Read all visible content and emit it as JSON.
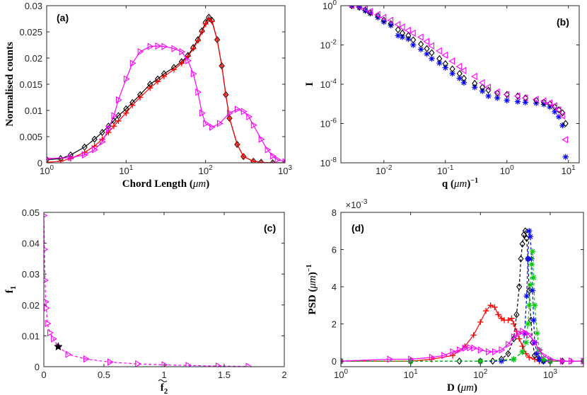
{
  "chart_data": [
    {
      "id": "a",
      "panel_label": "(a)",
      "type": "line",
      "xscale": "log",
      "xlim": [
        1,
        1000
      ],
      "ylim": [
        0,
        0.03
      ],
      "xticks": [
        1,
        10,
        100,
        1000
      ],
      "xtick_labels": [
        [
          "10",
          "0"
        ],
        [
          "10",
          "1"
        ],
        [
          "10",
          "2"
        ],
        [
          "10",
          "3"
        ]
      ],
      "yticks": [
        0,
        0.005,
        0.01,
        0.015,
        0.02,
        0.025,
        0.03
      ],
      "ytick_labels": [
        "0",
        "0.005",
        "0.01",
        "0.015",
        "0.02",
        "0.025",
        "0.03"
      ],
      "xlabel_parts": [
        "Chord Length (",
        "μm",
        ")"
      ],
      "ylabel": "Normalised counts",
      "series": [
        {
          "name": "black-diamond",
          "color": "#000000",
          "marker": "diamond",
          "x": [
            1,
            1.5,
            2,
            3,
            4,
            5,
            6,
            7,
            8,
            10,
            12,
            15,
            20,
            25,
            30,
            40,
            50,
            60,
            70,
            80,
            90,
            100,
            110,
            120,
            140,
            160,
            180,
            200,
            250,
            300,
            400,
            500,
            700,
            1000
          ],
          "y": [
            0.0006,
            0.0008,
            0.0015,
            0.003,
            0.0045,
            0.0058,
            0.007,
            0.008,
            0.009,
            0.0103,
            0.0115,
            0.013,
            0.015,
            0.016,
            0.017,
            0.0182,
            0.0193,
            0.0205,
            0.022,
            0.0235,
            0.0252,
            0.0268,
            0.0278,
            0.0272,
            0.0235,
            0.0185,
            0.013,
            0.0085,
            0.0035,
            0.0012,
            0.0003,
            0.0001,
            0,
            0
          ]
        },
        {
          "name": "red-plus",
          "color": "#ff0000",
          "marker": "plus",
          "x": [
            1,
            1.5,
            2,
            3,
            4,
            5,
            6,
            7,
            8,
            10,
            12,
            15,
            20,
            25,
            30,
            40,
            50,
            60,
            70,
            80,
            90,
            100,
            110,
            120,
            140,
            160,
            180,
            200,
            250,
            300,
            400,
            500,
            700,
            1000
          ],
          "y": [
            0.0001,
            0.0003,
            0.0008,
            0.002,
            0.0032,
            0.0045,
            0.0058,
            0.007,
            0.008,
            0.0095,
            0.011,
            0.0125,
            0.0143,
            0.0155,
            0.0165,
            0.0178,
            0.019,
            0.0203,
            0.0218,
            0.0233,
            0.025,
            0.0265,
            0.0275,
            0.027,
            0.0235,
            0.0185,
            0.013,
            0.0085,
            0.0035,
            0.0012,
            0.0003,
            0.0001,
            0,
            0
          ]
        },
        {
          "name": "magenta-triangle",
          "color": "#ff00ff",
          "marker": "triangle-right",
          "x": [
            1,
            2,
            3,
            4,
            5,
            6,
            7,
            8,
            10,
            12,
            15,
            20,
            25,
            30,
            40,
            50,
            60,
            70,
            80,
            90,
            100,
            120,
            150,
            200,
            250,
            300,
            350,
            400,
            500,
            600,
            700,
            800,
            1000
          ],
          "y": [
            0.0008,
            0.001,
            0.0015,
            0.0025,
            0.004,
            0.0065,
            0.009,
            0.012,
            0.016,
            0.019,
            0.0212,
            0.0222,
            0.0223,
            0.0222,
            0.0218,
            0.0212,
            0.0195,
            0.017,
            0.0135,
            0.0095,
            0.0075,
            0.0068,
            0.0075,
            0.0095,
            0.0102,
            0.0098,
            0.0088,
            0.0072,
            0.0045,
            0.0025,
            0.0013,
            0.0006,
            0.0002
          ]
        }
      ]
    },
    {
      "id": "b",
      "panel_label": "(b)",
      "type": "scatter",
      "xscale": "log",
      "yscale": "log",
      "xlim": [
        0.002,
        15
      ],
      "ylim": [
        1e-08,
        1
      ],
      "xticks": [
        0.01,
        0.1,
        1,
        10
      ],
      "xtick_labels": [
        [
          "10",
          "-2"
        ],
        [
          "10",
          "-1"
        ],
        [
          "10",
          "0"
        ],
        [
          "10",
          "1"
        ]
      ],
      "yticks": [
        1,
        0.01,
        0.0001,
        1e-06,
        1e-08
      ],
      "ytick_labels": [
        [
          "10",
          "0"
        ],
        [
          "10",
          "-2"
        ],
        [
          "10",
          "-4"
        ],
        [
          "10",
          "-6"
        ],
        [
          "10",
          "-8"
        ]
      ],
      "xlabel_parts": [
        "q (",
        "μm",
        ")",
        "−1"
      ],
      "ylabel": "I",
      "series": [
        {
          "name": "blue-star",
          "color": "#0000ff",
          "marker": "asterisk",
          "x": [
            0.003,
            0.004,
            0.005,
            0.006,
            0.008,
            0.01,
            0.013,
            0.017,
            0.02,
            0.025,
            0.03,
            0.04,
            0.05,
            0.06,
            0.08,
            0.1,
            0.13,
            0.17,
            0.2,
            0.3,
            0.4,
            0.5,
            0.7,
            1,
            1.5,
            2,
            3,
            4,
            5,
            6,
            7,
            8,
            9
          ],
          "y": [
            1.0,
            0.8,
            0.55,
            0.4,
            0.25,
            0.15,
            0.1,
            0.03,
            0.025,
            0.02,
            0.01,
            0.006,
            0.0035,
            0.002,
            0.0012,
            0.0007,
            0.00035,
            0.0002,
            0.00012,
            7e-05,
            4.5e-05,
            2.5e-05,
            2e-05,
            1.5e-05,
            1.3e-05,
            1.2e-05,
            1.1e-05,
            9.5e-06,
            7e-06,
            4e-06,
            2.2e-06,
            8e-07,
            2e-08
          ]
        },
        {
          "name": "black-diamond",
          "color": "#000000",
          "marker": "diamond",
          "x": [
            0.003,
            0.004,
            0.005,
            0.006,
            0.008,
            0.01,
            0.013,
            0.017,
            0.02,
            0.025,
            0.03,
            0.04,
            0.05,
            0.06,
            0.08,
            0.1,
            0.13,
            0.17,
            0.2,
            0.3,
            0.4,
            0.5,
            0.7,
            1,
            1.5,
            2,
            3,
            4,
            5,
            6,
            7,
            8,
            9
          ],
          "y": [
            1.0,
            0.85,
            0.6,
            0.45,
            0.3,
            0.18,
            0.12,
            0.06,
            0.04,
            0.03,
            0.018,
            0.011,
            0.0065,
            0.004,
            0.002,
            0.0011,
            0.0006,
            0.00035,
            0.0002,
            0.00011,
            7e-05,
            5e-05,
            3.5e-05,
            3e-05,
            2.5e-05,
            2e-05,
            1.5e-05,
            1.2e-05,
            1e-05,
            7e-06,
            5e-06,
            3.5e-06,
            1e-06
          ]
        },
        {
          "name": "magenta-triangle",
          "color": "#ff00ff",
          "marker": "triangle-left",
          "x": [
            0.003,
            0.004,
            0.005,
            0.006,
            0.008,
            0.01,
            0.013,
            0.017,
            0.02,
            0.025,
            0.03,
            0.04,
            0.05,
            0.06,
            0.08,
            0.1,
            0.13,
            0.17,
            0.2,
            0.3,
            0.4,
            0.5,
            0.7,
            1,
            1.5,
            2,
            3,
            4,
            5,
            6,
            7,
            8,
            9
          ],
          "y": [
            1.0,
            0.9,
            0.7,
            0.5,
            0.35,
            0.25,
            0.18,
            0.11,
            0.08,
            0.055,
            0.04,
            0.025,
            0.015,
            0.009,
            0.005,
            0.003,
            0.0015,
            0.0008,
            0.0005,
            0.00025,
            0.00012,
            7e-05,
            4e-05,
            3e-05,
            2.5e-05,
            2e-05,
            1.7e-05,
            1.4e-05,
            1.1e-05,
            8e-06,
            5e-06,
            2.5e-06,
            1.5e-07
          ]
        }
      ]
    },
    {
      "id": "c",
      "panel_label": "(c)",
      "type": "line",
      "xlim": [
        0,
        2
      ],
      "ylim": [
        0,
        0.05
      ],
      "xticks": [
        0,
        0.5,
        1,
        1.5,
        2
      ],
      "xtick_labels": [
        "0",
        "0.5",
        "1",
        "1.5",
        "2"
      ],
      "yticks": [
        0,
        0.01,
        0.02,
        0.03,
        0.04,
        0.05
      ],
      "ytick_labels": [
        "0",
        "0.01",
        "0.02",
        "0.03",
        "0.04",
        "0.05"
      ],
      "xlabel_parts": [
        "f",
        "2"
      ],
      "ylabel_parts": [
        "f",
        "1"
      ],
      "series": [
        {
          "name": "magenta-triangle",
          "color": "#ff00ff",
          "marker": "triangle-right",
          "dashed": true,
          "x": [
            0,
            0.005,
            0.01,
            0.015,
            0.02,
            0.03,
            0.05,
            0.08,
            0.12,
            0.2,
            0.35,
            0.55,
            0.78,
            1.0,
            1.2,
            1.45,
            1.7
          ],
          "y": [
            0.049,
            0.038,
            0.028,
            0.021,
            0.019,
            0.014,
            0.011,
            0.009,
            0.0065,
            0.004,
            0.0025,
            0.0015,
            0.0009,
            0.0006,
            0.0004,
            0.0002,
            0.0001
          ]
        },
        {
          "name": "black-star",
          "color": "#000000",
          "marker": "star",
          "x": [
            0.12
          ],
          "y": [
            0.0065
          ]
        }
      ]
    },
    {
      "id": "d",
      "panel_label": "(d)",
      "type": "line",
      "xscale": "log",
      "xlim": [
        1,
        3000
      ],
      "ylim": [
        -0.0003,
        0.008
      ],
      "xticks": [
        1,
        10,
        100,
        1000
      ],
      "xtick_labels": [
        [
          "10",
          "0"
        ],
        [
          "10",
          "1"
        ],
        [
          "10",
          "2"
        ],
        [
          "10",
          "3"
        ]
      ],
      "yticks": [
        0,
        0.002,
        0.004,
        0.006,
        0.008
      ],
      "ytick_labels": [
        "0",
        "2",
        "4",
        "6",
        "8"
      ],
      "multiplier": [
        "×10",
        "-3"
      ],
      "xlabel_parts": [
        "D (",
        "μm",
        ")"
      ],
      "ylabel_parts": [
        "PSD (",
        "μm",
        ")",
        "−1"
      ],
      "series": [
        {
          "name": "red-plus",
          "color": "#ff0000",
          "marker": "plus",
          "x": [
            1,
            10,
            20,
            40,
            60,
            80,
            100,
            120,
            140,
            160,
            180,
            200,
            220,
            250,
            280,
            300,
            330,
            360,
            400,
            450,
            500,
            600,
            700,
            800,
            1000,
            1500,
            2000,
            3000
          ],
          "y": [
            0,
            0,
            0.0001,
            0.0003,
            0.0008,
            0.0014,
            0.0021,
            0.0027,
            0.003,
            0.0029,
            0.0025,
            0.0023,
            0.0022,
            0.0022,
            0.0023,
            0.002,
            0.0016,
            0.0012,
            0.0008,
            0.0004,
            0.0002,
            0.0001,
            0,
            0,
            0,
            0,
            0,
            0
          ]
        },
        {
          "name": "black-diamond",
          "color": "#000000",
          "marker": "diamond",
          "dashed": true,
          "x": [
            1,
            10,
            50,
            100,
            150,
            200,
            250,
            300,
            330,
            360,
            380,
            400,
            420,
            440,
            460,
            480,
            500,
            530,
            560,
            600,
            700,
            800,
            1000,
            1500,
            3000
          ],
          "y": [
            0,
            0,
            0,
            0,
            0,
            0.0001,
            0.0004,
            0.0012,
            0.0025,
            0.004,
            0.0055,
            0.0063,
            0.0068,
            0.007,
            0.0066,
            0.0055,
            0.0038,
            0.0022,
            0.001,
            0.0003,
            0.0001,
            0,
            0,
            0,
            0
          ]
        },
        {
          "name": "blue-star",
          "color": "#0000ff",
          "marker": "asterisk",
          "dashed": true,
          "x": [
            1,
            10,
            100,
            200,
            300,
            400,
            430,
            460,
            480,
            500,
            520,
            540,
            560,
            580,
            600,
            650,
            700,
            800,
            1000,
            3000
          ],
          "y": [
            0,
            0,
            0,
            0,
            0.0001,
            0.0005,
            0.0015,
            0.0035,
            0.0055,
            0.007,
            0.0067,
            0.0055,
            0.0038,
            0.0022,
            0.001,
            0.0004,
            0.0001,
            0,
            0,
            0
          ]
        },
        {
          "name": "green-star",
          "color": "#00cc00",
          "marker": "asterisk",
          "dashed": true,
          "x": [
            1,
            10,
            100,
            300,
            400,
            450,
            480,
            500,
            520,
            540,
            560,
            580,
            600,
            650,
            700,
            800,
            1000,
            3000
          ],
          "y": [
            0,
            0,
            0,
            0.0001,
            0.0005,
            0.001,
            0.002,
            0.003,
            0.0041,
            0.0052,
            0.0059,
            0.0045,
            0.003,
            0.0015,
            0.0006,
            0.0001,
            0,
            0
          ]
        },
        {
          "name": "magenta-triangle",
          "color": "#ff00ff",
          "marker": "triangle-right",
          "x": [
            1,
            5,
            10,
            20,
            30,
            40,
            50,
            60,
            70,
            80,
            100,
            130,
            160,
            200,
            250,
            300,
            350,
            400,
            450,
            500,
            600,
            700,
            800,
            1000,
            1500,
            2000,
            3000
          ],
          "y": [
            0,
            0.0001,
            0.0001,
            0.0002,
            0.0003,
            0.0005,
            0.0006,
            0.0007,
            0.00072,
            0.0007,
            0.0006,
            0.0005,
            0.0005,
            0.0006,
            0.0009,
            0.0013,
            0.0015,
            0.0016,
            0.0015,
            0.0014,
            0.001,
            0.0006,
            0.0003,
            0.0001,
            0,
            0,
            0
          ]
        }
      ]
    }
  ]
}
